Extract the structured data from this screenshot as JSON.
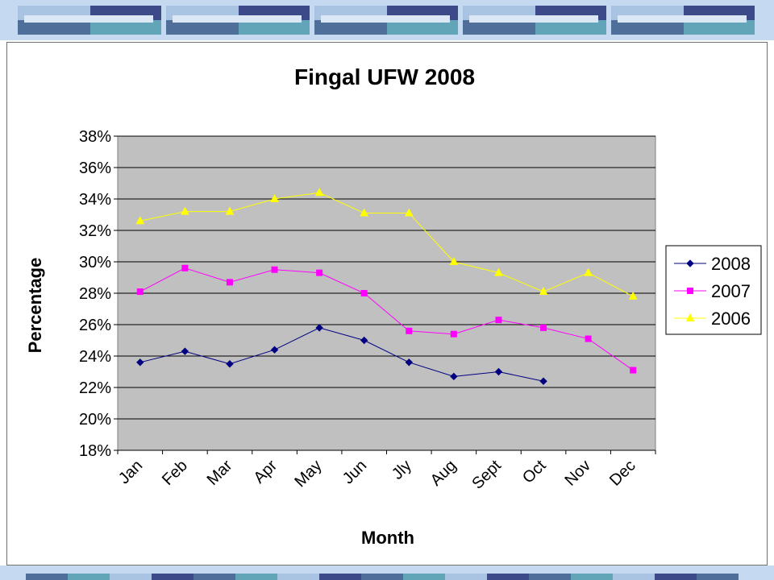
{
  "colors": {
    "band": "#c5d9f0",
    "deco_dark": "#3d4a8a",
    "deco_mid": "#4f6f9a",
    "deco_teal": "#63a5b8",
    "deco_light": "#a9c3e3",
    "deco_pale": "#dbe7f4",
    "plot_bg": "#c0c0c0"
  },
  "chart_data": {
    "type": "line",
    "title": "Fingal UFW 2008",
    "xlabel": "Month",
    "ylabel": "Percentage",
    "categories": [
      "Jan",
      "Feb",
      "Mar",
      "Apr",
      "May",
      "Jun",
      "Jly",
      "Aug",
      "Sept",
      "Oct",
      "Nov",
      "Dec"
    ],
    "ylim": [
      0.18,
      0.38
    ],
    "yticks": [
      0.18,
      0.2,
      0.22,
      0.24,
      0.26,
      0.28,
      0.3,
      0.32,
      0.34,
      0.36,
      0.38
    ],
    "ytick_labels": [
      "18%",
      "20%",
      "22%",
      "24%",
      "26%",
      "28%",
      "30%",
      "32%",
      "34%",
      "36%",
      "38%"
    ],
    "grid": true,
    "legend": "right",
    "series": [
      {
        "name": "2008",
        "color": "#000080",
        "marker": "diamond",
        "values": [
          0.236,
          0.243,
          0.235,
          0.244,
          0.258,
          0.25,
          0.236,
          0.227,
          0.23,
          0.224,
          null,
          null
        ]
      },
      {
        "name": "2007",
        "color": "#ff00ff",
        "marker": "square",
        "values": [
          0.281,
          0.296,
          0.287,
          0.295,
          0.293,
          0.28,
          0.256,
          0.254,
          0.263,
          0.258,
          0.251,
          0.231
        ]
      },
      {
        "name": "2006",
        "color": "#ffff00",
        "marker": "triangle",
        "values": [
          0.326,
          0.332,
          0.332,
          0.34,
          0.344,
          0.331,
          0.331,
          0.3,
          0.293,
          0.281,
          0.293,
          0.278
        ]
      }
    ]
  }
}
